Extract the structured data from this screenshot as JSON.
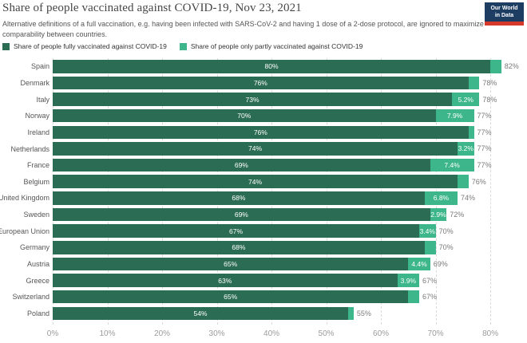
{
  "header": {
    "title": "Share of people vaccinated against COVID-19, Nov 23, 2021",
    "subtitle_line1": "Alternative definitions of a full vaccination, e.g. having been infected with SARS-CoV-2 and having 1 dose of a 2-dose protocol, are ignored to maximize",
    "subtitle_line2": "comparability between countries.",
    "logo_line1": "Our World",
    "logo_line2": "in Data"
  },
  "colors": {
    "fully": "#2b6c55",
    "partly": "#3db68c",
    "logo_bg": "#1d3d63",
    "logo_red": "#d6382c"
  },
  "legend": {
    "items": [
      {
        "label": "Share of people fully vaccinated against COVID-19",
        "color": "#2b6c55"
      },
      {
        "label": "Share of people only partly vaccinated against COVID-19",
        "color": "#3db68c"
      }
    ]
  },
  "axis": {
    "max": 86.7,
    "ticks": [
      {
        "value": 0,
        "label": "0%"
      },
      {
        "value": 10,
        "label": "10%"
      },
      {
        "value": 20,
        "label": "20%"
      },
      {
        "value": 30,
        "label": "30%"
      },
      {
        "value": 40,
        "label": "40%"
      },
      {
        "value": 50,
        "label": "50%"
      },
      {
        "value": 60,
        "label": "60%"
      },
      {
        "value": 70,
        "label": "70%"
      },
      {
        "value": 80,
        "label": "80%"
      }
    ]
  },
  "chart_data": {
    "type": "bar",
    "orientation": "horizontal",
    "stacked": true,
    "title": "Share of people vaccinated against COVID-19, Nov 23, 2021",
    "categories": [
      "Spain",
      "Denmark",
      "Italy",
      "Norway",
      "Ireland",
      "Netherlands",
      "France",
      "Belgium",
      "United Kingdom",
      "Sweden",
      "European Union",
      "Germany",
      "Austria",
      "Greece",
      "Switzerland",
      "Poland"
    ],
    "series": [
      {
        "name": "Share of people fully vaccinated against COVID-19",
        "values": [
          80,
          76,
          73,
          70,
          76,
          74,
          69,
          74,
          68,
          69,
          67,
          68,
          65,
          63,
          65,
          54
        ]
      },
      {
        "name": "Share of people only partly vaccinated against COVID-19",
        "values": [
          2,
          2,
          5.2,
          7.9,
          1,
          3.2,
          7.4,
          2,
          6.8,
          2.9,
          3.4,
          2,
          4.4,
          3.9,
          2,
          1
        ]
      }
    ],
    "totals": [
      82,
      78,
      78,
      77,
      77,
      77,
      77,
      76,
      74,
      72,
      70,
      70,
      69,
      67,
      67,
      55
    ],
    "xlabel": "",
    "ylabel": "",
    "xlim": [
      0,
      86.7
    ],
    "xticklabels": [
      "0%",
      "10%",
      "20%",
      "30%",
      "40%",
      "50%",
      "60%",
      "70%",
      "80%"
    ],
    "grid": "dashed-vertical",
    "legend_position": "top"
  },
  "rows": [
    {
      "country": "Spain",
      "fully": 80,
      "fully_label": "80%",
      "partly_label": "",
      "total": 82,
      "total_label": "82%"
    },
    {
      "country": "Denmark",
      "fully": 76,
      "fully_label": "76%",
      "partly_label": "",
      "total": 78,
      "total_label": "78%"
    },
    {
      "country": "Italy",
      "fully": 73,
      "fully_label": "73%",
      "partly_label": "5.2%",
      "total": 78,
      "total_label": "78%"
    },
    {
      "country": "Norway",
      "fully": 70,
      "fully_label": "70%",
      "partly_label": "7.9%",
      "total": 77,
      "total_label": "77%"
    },
    {
      "country": "Ireland",
      "fully": 76,
      "fully_label": "76%",
      "partly_label": "",
      "total": 77,
      "total_label": "77%"
    },
    {
      "country": "Netherlands",
      "fully": 74,
      "fully_label": "74%",
      "partly_label": "3.2%",
      "total": 77,
      "total_label": "77%"
    },
    {
      "country": "France",
      "fully": 69,
      "fully_label": "69%",
      "partly_label": "7.4%",
      "total": 77,
      "total_label": "77%"
    },
    {
      "country": "Belgium",
      "fully": 74,
      "fully_label": "74%",
      "partly_label": "",
      "total": 76,
      "total_label": "76%"
    },
    {
      "country": "United Kingdom",
      "fully": 68,
      "fully_label": "68%",
      "partly_label": "6.8%",
      "total": 74,
      "total_label": "74%"
    },
    {
      "country": "Sweden",
      "fully": 69,
      "fully_label": "69%",
      "partly_label": "2.9%",
      "total": 72,
      "total_label": "72%"
    },
    {
      "country": "European Union",
      "fully": 67,
      "fully_label": "67%",
      "partly_label": "3.4%",
      "total": 70,
      "total_label": "70%"
    },
    {
      "country": "Germany",
      "fully": 68,
      "fully_label": "68%",
      "partly_label": "",
      "total": 70,
      "total_label": "70%"
    },
    {
      "country": "Austria",
      "fully": 65,
      "fully_label": "65%",
      "partly_label": "4.4%",
      "total": 69,
      "total_label": "69%"
    },
    {
      "country": "Greece",
      "fully": 63,
      "fully_label": "63%",
      "partly_label": "3.9%",
      "total": 67,
      "total_label": "67%"
    },
    {
      "country": "Switzerland",
      "fully": 65,
      "fully_label": "65%",
      "partly_label": "",
      "total": 67,
      "total_label": "67%"
    },
    {
      "country": "Poland",
      "fully": 54,
      "fully_label": "54%",
      "partly_label": "",
      "total": 55,
      "total_label": "55%"
    }
  ]
}
